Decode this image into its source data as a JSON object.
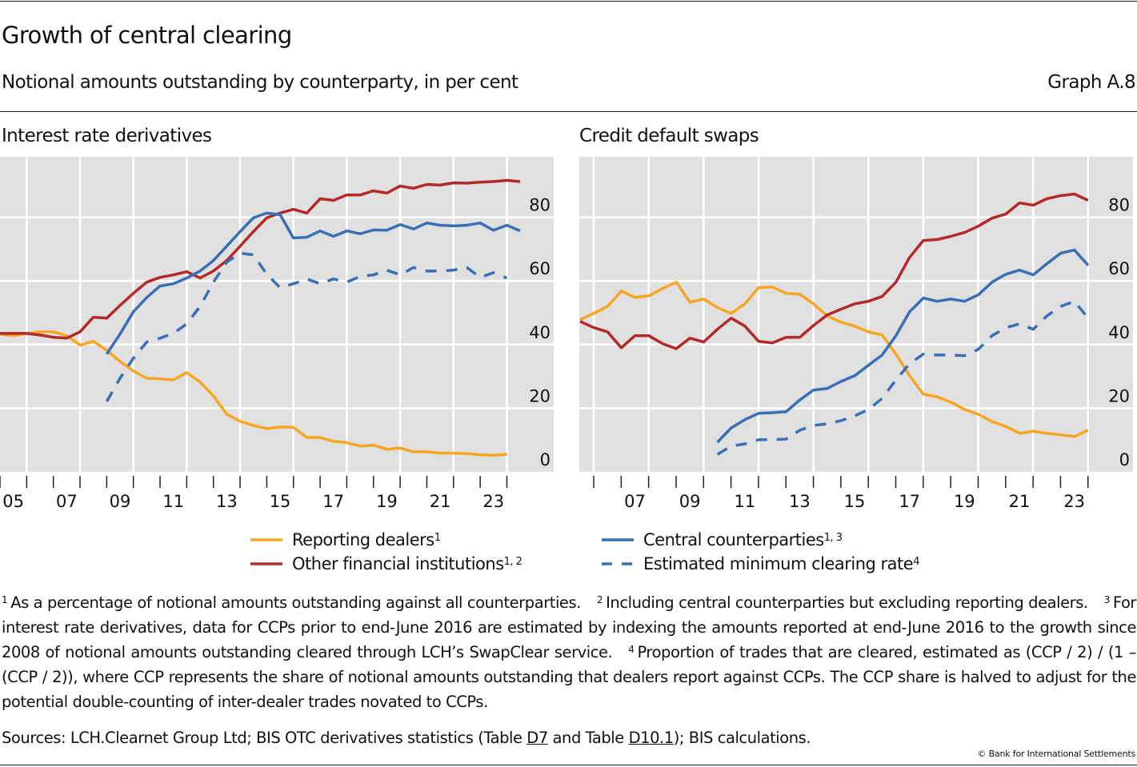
{
  "header": {
    "title": "Growth of central clearing",
    "subtitle": "Notional amounts outstanding by counterparty, in per cent",
    "graph_id": "Graph A.8"
  },
  "legend": {
    "items": [
      {
        "key": "dealers",
        "label": "Reporting dealers",
        "sup": "1",
        "color": "#f5a623",
        "style": "solid"
      },
      {
        "key": "ofi",
        "label": "Other financial institutions",
        "sup": "1, 2",
        "color": "#b22a2a",
        "style": "solid"
      },
      {
        "key": "ccp",
        "label": "Central counterparties",
        "sup": "1, 3",
        "color": "#3a6fb5",
        "style": "solid"
      },
      {
        "key": "emcr",
        "label": "Estimated minimum clearing rate",
        "sup": "4",
        "color": "#3a6fb5",
        "style": "dashed"
      }
    ]
  },
  "chart_data": [
    {
      "type": "line",
      "title": "Interest rate derivatives",
      "xlabel": "",
      "ylabel": "",
      "x_start": "2004-H2",
      "x_step": "half-year",
      "x_tick_labels": [
        "05",
        "07",
        "09",
        "11",
        "13",
        "15",
        "17",
        "19",
        "21",
        "23"
      ],
      "y_tick_labels": [
        "0",
        "20",
        "40",
        "60",
        "80"
      ],
      "ylim": [
        0,
        99
      ],
      "xlim_years": [
        2005,
        2025.6
      ],
      "grid": true,
      "y_axis_side": "right",
      "series": [
        {
          "name": "Reporting dealers",
          "key": "dealers",
          "start_index": 0,
          "values": [
            43.3,
            42.8,
            43.5,
            44,
            44,
            42.8,
            39.8,
            41,
            38.2,
            34.7,
            31.7,
            29.4,
            29.2,
            28.9,
            31.2,
            28.2,
            23.9,
            18.1,
            15.9,
            14.6,
            13.6,
            14.1,
            14,
            10.8,
            10.8,
            9.6,
            9.2,
            8.1,
            8.4,
            7.1,
            7.5,
            6.3,
            6.3,
            5.9,
            5.9,
            5.7,
            5.4,
            5.2,
            5.5
          ]
        },
        {
          "name": "Other financial institutions",
          "key": "ofi",
          "start_index": 0,
          "values": [
            43.5,
            43.5,
            43.5,
            43,
            42.3,
            42,
            44,
            48.6,
            48.3,
            52.3,
            56.1,
            59.6,
            61.1,
            61.9,
            62.9,
            60.9,
            63.1,
            66.4,
            70.9,
            75.5,
            79.8,
            81.3,
            82.5,
            81.3,
            85.8,
            85.3,
            87,
            87,
            88.3,
            87.6,
            89.8,
            89.1,
            90.3,
            90.1,
            90.8,
            90.7,
            91,
            91.2,
            91.6,
            91.2
          ]
        },
        {
          "name": "Central counterparties",
          "key": "ccp",
          "start_index": 8,
          "values": [
            37,
            43.3,
            50.3,
            54.8,
            58.4,
            59.1,
            60.9,
            63.1,
            66.4,
            70.9,
            75.5,
            79.8,
            81.3,
            80.8,
            73.5,
            73.7,
            75.7,
            74,
            75.7,
            74.8,
            76,
            75.9,
            77.7,
            76.3,
            78.2,
            77.5,
            77.3,
            77.5,
            78.2,
            75.9,
            77.5,
            75.7
          ]
        },
        {
          "name": "Estimated minimum clearing rate",
          "key": "emcr",
          "start_index": 8,
          "values": [
            22.1,
            29.4,
            35.7,
            40.8,
            42,
            43.5,
            46.5,
            52,
            59.6,
            65.9,
            68.7,
            68.2,
            62.1,
            57.9,
            59.1,
            60.6,
            59.1,
            60.6,
            59.6,
            61.4,
            61.9,
            63.4,
            61.9,
            64.2,
            63.1,
            63.1,
            63.4,
            64.2,
            61.1,
            62.6,
            60.9
          ]
        }
      ]
    },
    {
      "type": "line",
      "title": "Credit default swaps",
      "xlabel": "",
      "ylabel": "",
      "x_start": "2005-H1",
      "x_step": "half-year",
      "x_tick_labels": [
        "07",
        "09",
        "11",
        "13",
        "15",
        "17",
        "19",
        "21",
        "23"
      ],
      "y_tick_labels": [
        "0",
        "20",
        "40",
        "60",
        "80"
      ],
      "ylim": [
        0,
        99
      ],
      "grid": true,
      "y_axis_side": "right",
      "series": [
        {
          "name": "Reporting dealers",
          "key": "dealers",
          "start_index": 0,
          "values": [
            47.8,
            49.8,
            52,
            56.8,
            54.8,
            55.3,
            57.6,
            59.6,
            53.3,
            54.3,
            51.6,
            49.8,
            52.8,
            57.9,
            58.1,
            56.1,
            55.8,
            52.8,
            49,
            47,
            45.8,
            44,
            43,
            37,
            30.2,
            24.4,
            23.6,
            21.9,
            19.6,
            18.1,
            15.8,
            14.3,
            12.1,
            12.8,
            12.1,
            11.6,
            11.1,
            13.1
          ]
        },
        {
          "name": "Other financial institutions",
          "key": "ofi",
          "start_index": 0,
          "values": [
            47.3,
            45.3,
            44,
            39,
            42.8,
            42.8,
            40.3,
            38.7,
            42,
            40.8,
            44.8,
            48.3,
            45.8,
            41,
            40.5,
            42.3,
            42.3,
            46,
            49.3,
            51.1,
            52.8,
            53.6,
            55.1,
            59.6,
            67.4,
            72.7,
            73,
            74,
            75.2,
            77.2,
            79.7,
            81,
            84.5,
            83.8,
            85.8,
            86.8,
            87.3,
            85.3
          ]
        },
        {
          "name": "Central counterparties",
          "key": "ccp",
          "start_index": 10,
          "values": [
            9.3,
            13.8,
            16.4,
            18.4,
            18.6,
            18.9,
            22.6,
            25.7,
            26.2,
            28.4,
            30.2,
            33.5,
            36.7,
            42.8,
            50.3,
            54.6,
            53.6,
            54.3,
            53.6,
            55.6,
            59.6,
            62.1,
            63.4,
            61.9,
            65.4,
            68.7,
            69.7,
            64.9
          ]
        },
        {
          "name": "Estimated minimum clearing rate",
          "key": "emcr",
          "start_index": 10,
          "values": [
            5.5,
            8.1,
            8.8,
            10.1,
            10.1,
            10.3,
            13.1,
            14.6,
            15.1,
            16.1,
            17.6,
            19.6,
            23.1,
            28.9,
            34,
            37,
            36.7,
            36.7,
            36.5,
            38.5,
            42.8,
            45.3,
            46.5,
            44.8,
            49,
            52,
            53.6,
            48.3
          ]
        }
      ]
    }
  ],
  "footnotes": [
    {
      "num": "1",
      "text": "As a percentage of notional amounts outstanding against all counterparties."
    },
    {
      "num": "2",
      "text": "Including central counterparties but excluding reporting dealers."
    },
    {
      "num": "3",
      "text": "For interest rate derivatives, data for CCPs prior to end-June 2016 are estimated by indexing the amounts reported at end-June 2016 to the growth since 2008 of notional amounts outstanding cleared through LCH’s SwapClear service."
    },
    {
      "num": "4",
      "text": "Proportion of trades that are cleared, estimated as (CCP / 2) / (1 – (CCP / 2)), where CCP represents the share of notional amounts outstanding that dealers report against CCPs. The CCP share is halved to adjust for the potential double-counting of inter-dealer trades novated to CCPs."
    }
  ],
  "sources": {
    "prefix": "Sources: LCH.Clearnet Group Ltd; BIS OTC derivatives statistics (Table ",
    "link1": "D7",
    "middle": " and Table ",
    "link2": "D10.1",
    "suffix": "); BIS calculations."
  },
  "copyright": "© Bank for International Settlements"
}
